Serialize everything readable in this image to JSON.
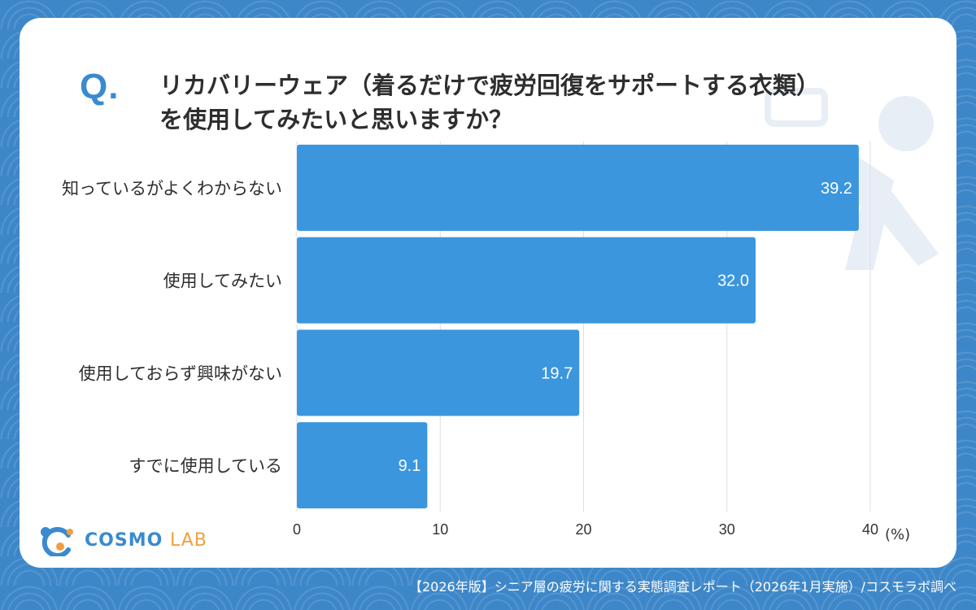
{
  "question": {
    "mark": "Q.",
    "line1": "リカバリーウェア（着るだけで疲労回復をサポートする衣類）",
    "line2": "を使用してみたいと思いますか？"
  },
  "chart_data": {
    "type": "bar",
    "orientation": "horizontal",
    "categories": [
      "知っているがよくわからない",
      "使用してみたい",
      "使用しておらず興味がない",
      "すでに使用している"
    ],
    "values": [
      39.2,
      32.0,
      19.7,
      9.1
    ],
    "value_labels": [
      "39.2",
      "32.0",
      "19.7",
      "9.1"
    ],
    "xlim": [
      0,
      40
    ],
    "xticks": [
      "0",
      "10",
      "20",
      "30",
      "40"
    ],
    "xunit": "(%)",
    "grid": true,
    "bar_color": "#3b96de",
    "label_color": "#ffffff"
  },
  "logo": {
    "name_main": "COSMO",
    "name_sub": "LAB",
    "primary_color": "#3a8ad0",
    "secondary_color": "#f0a040"
  },
  "footer": {
    "source": "【2026年版】シニア層の疲労に関する実態調査レポート（2026年1月実施）/コスモラボ調べ"
  }
}
